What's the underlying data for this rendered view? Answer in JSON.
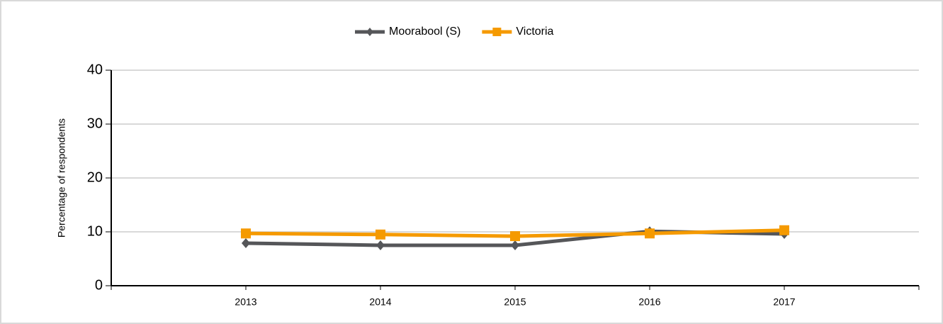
{
  "chart_data": {
    "type": "line",
    "categories": [
      "2013",
      "2014",
      "2015",
      "2016",
      "2017"
    ],
    "series": [
      {
        "name": "Moorabool (S)",
        "color": "#555659",
        "marker": "diamond",
        "values": [
          7.9,
          7.5,
          7.5,
          10.1,
          9.6
        ]
      },
      {
        "name": "Victoria",
        "color": "#f59a00",
        "marker": "square",
        "values": [
          9.7,
          9.5,
          9.2,
          9.7,
          10.3
        ]
      }
    ],
    "ylabel": "Percentage of respondents",
    "ylim": [
      0,
      40
    ],
    "yticks": [
      0,
      10,
      20,
      30,
      40
    ],
    "grid": true,
    "legend": "top"
  }
}
